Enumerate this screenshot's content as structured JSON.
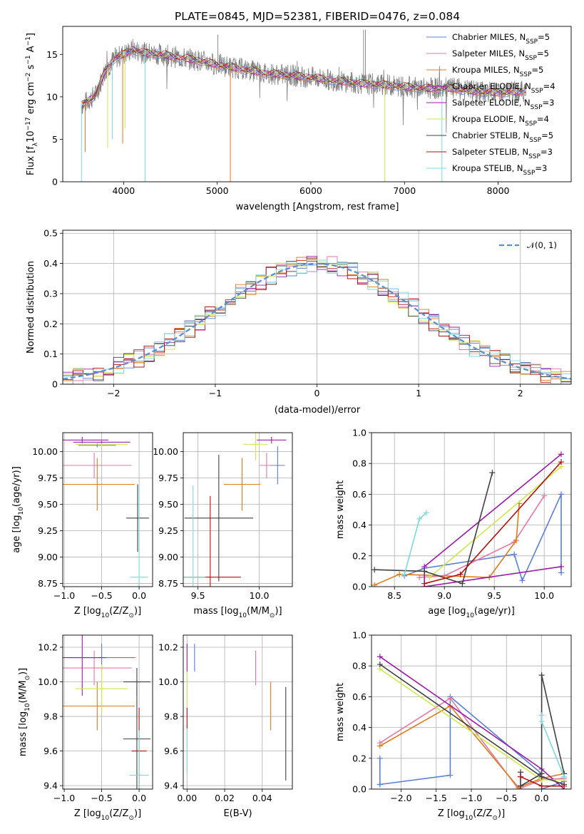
{
  "colors": {
    "Chabrier MILES": "#5b7fd4",
    "Salpeter MILES": "#e377a7",
    "Kroupa MILES": "#e07b1a",
    "Chabrier ELODIE": "#9b1ba8",
    "Salpeter ELODIE": "#9b1ba8",
    "Kroupa ELODIE": "#cfe84a",
    "Chabrier STELIB": "#404040",
    "Salpeter STELIB": "#b31010",
    "Kroupa STELIB": "#7ed8e0",
    "gauss": "#5b8fd4"
  },
  "chart_data": [
    {
      "id": "spectrum",
      "type": "line",
      "title": "PLATE=0845, MJD=52381, FIBERID=0476, z=0.084",
      "xlabel": "wavelength [Angstrom, rest frame]",
      "ylabel_main": "Flux [f",
      "ylabel_sub": "λ",
      "ylabel_rest": "10",
      "ylabel_sup1": "−17",
      "ylabel_mid": " erg cm",
      "ylabel_sup2": "−2",
      "ylabel_mid2": " s",
      "ylabel_sup3": "−1",
      "ylabel_end": " A",
      "ylabel_sup4": "−1",
      "ylabel_close": "]",
      "xlim": [
        3350,
        8780
      ],
      "ylim": [
        0,
        18.3
      ],
      "xticks": [
        4000,
        5000,
        6000,
        7000,
        8000
      ],
      "yticks": [
        0,
        5,
        10,
        15
      ],
      "legend": [
        {
          "name": "Chabrier MILES",
          "nssp": "5"
        },
        {
          "name": "Salpeter MILES",
          "nssp": "5"
        },
        {
          "name": "Kroupa MILES",
          "nssp": "5"
        },
        {
          "name": "Chabrier ELODIE",
          "nssp": "4"
        },
        {
          "name": "Salpeter ELODIE",
          "nssp": "3"
        },
        {
          "name": "Kroupa ELODIE",
          "nssp": "4"
        },
        {
          "name": "Chabrier STELIB",
          "nssp": "5"
        },
        {
          "name": "Salpeter STELIB",
          "nssp": "3"
        },
        {
          "name": "Kroupa STELIB",
          "nssp": "3"
        }
      ],
      "legend_prefix": "N",
      "legend_sub": "SSP",
      "legend_placement": "upper-right",
      "continuum": [
        [
          3550,
          9.0
        ],
        [
          3700,
          10.2
        ],
        [
          3800,
          13.0
        ],
        [
          3900,
          14.5
        ],
        [
          4000,
          15.0
        ],
        [
          4100,
          15.6
        ],
        [
          4200,
          15.2
        ],
        [
          4400,
          15.0
        ],
        [
          4600,
          14.6
        ],
        [
          4800,
          14.3
        ],
        [
          5000,
          13.8
        ],
        [
          5200,
          13.4
        ],
        [
          5500,
          12.8
        ],
        [
          5800,
          12.5
        ],
        [
          6000,
          12.3
        ],
        [
          6200,
          12.0
        ],
        [
          6500,
          11.6
        ],
        [
          6800,
          11.4
        ],
        [
          7000,
          11.2
        ],
        [
          7200,
          11.0
        ],
        [
          7500,
          11.0
        ],
        [
          7800,
          10.6
        ],
        [
          8000,
          10.5
        ],
        [
          8200,
          10.6
        ],
        [
          8300,
          10.7
        ]
      ],
      "dips": [
        [
          3550,
          0
        ],
        [
          3590,
          3.5
        ],
        [
          3830,
          4.0
        ],
        [
          3880,
          5.0
        ],
        [
          3990,
          4.5
        ],
        [
          4015,
          6.3
        ],
        [
          4230,
          0
        ],
        [
          5140,
          0
        ],
        [
          6790,
          0
        ],
        [
          7400,
          0
        ]
      ]
    },
    {
      "id": "residuals",
      "type": "line",
      "xlabel": "(data-model)/error",
      "ylabel": "Normed distribution",
      "xlim": [
        -2.5,
        2.5
      ],
      "ylim": [
        0,
        0.51
      ],
      "xticks": [
        -2,
        -1,
        0,
        1,
        2
      ],
      "yticks": [
        0.0,
        0.1,
        0.2,
        0.3,
        0.4,
        0.5
      ],
      "series": [
        {
          "name": "𝒩(0, 1)",
          "mu": 0,
          "sigma": 1
        }
      ],
      "legend_placement": "upper-right",
      "bin_width": 0.1
    },
    {
      "id": "age_vs_Z",
      "type": "scatter",
      "xlabel": "Z [log",
      "xlabel_sub": "10",
      "xlabel_end": "(Z/Z",
      "xlabel_sun": "⊙",
      "xlabel_close": ")]",
      "ylabel": "age  [log",
      "ylabel_sub": "10",
      "ylabel_end": "(age/yr)]",
      "xlim": [
        -1.02,
        0.18
      ],
      "ylim": [
        8.72,
        10.18
      ],
      "xticks": [
        -1.0,
        -0.5,
        0.0
      ],
      "xticklabels": [
        "−1.0",
        "−0.5",
        "0.0"
      ],
      "yticks": [
        8.75,
        9.0,
        9.25,
        9.5,
        9.75,
        10.0
      ],
      "yticklabels": [
        "8.75",
        "9.00",
        "9.25",
        "9.50",
        "9.75",
        "10.00"
      ],
      "points": [
        {
          "name": "Chabrier MILES",
          "x": -0.56,
          "xerr": 0.25,
          "y": 10.06,
          "yerr": 0.02
        },
        {
          "name": "Salpeter MILES",
          "x": -0.6,
          "xerr": 0.5,
          "y": 9.87,
          "yerr": 0.12
        },
        {
          "name": "Kroupa MILES",
          "x": -0.56,
          "xerr": 0.5,
          "y": 9.69,
          "yerr": 0.25
        },
        {
          "name": "Chabrier ELODIE",
          "x": -0.76,
          "xerr": 0.35,
          "y": 10.11,
          "yerr": 0.03
        },
        {
          "name": "Kroupa ELODIE",
          "x": -0.5,
          "xerr": 0.35,
          "y": 10.07,
          "yerr": 0.02
        },
        {
          "name": "Salpeter ELODIE",
          "x": -0.5,
          "xerr": 0.38,
          "y": 10.09,
          "yerr": 0.01
        },
        {
          "name": "Chabrier STELIB",
          "x": -0.02,
          "xerr": 0.15,
          "y": 9.37,
          "yerr": 0.32
        },
        {
          "name": "Kroupa STELIB",
          "x": 0.0,
          "xerr": 0.12,
          "y": 8.81,
          "yerr": 0.87
        }
      ]
    },
    {
      "id": "age_vs_mass",
      "type": "scatter",
      "xlabel": "mass [log",
      "xlabel_sub": "10",
      "xlabel_end": "(M/M",
      "xlabel_sun": "⊙",
      "xlabel_close": ")]",
      "xlim": [
        9.38,
        10.27
      ],
      "ylim": [
        8.72,
        10.18
      ],
      "xticks": [
        9.5,
        10.0
      ],
      "xticklabels": [
        "9.5",
        "10.0"
      ],
      "yticks": [
        8.75,
        9.0,
        9.25,
        9.5,
        9.75,
        10.0
      ],
      "yticklabels": [
        "8.75",
        "9.00",
        "9.25",
        "9.50",
        "9.75",
        "10.00"
      ],
      "points": [
        {
          "name": "Chabrier MILES",
          "x": 10.15,
          "xerr": 0.06,
          "y": 9.87,
          "yerr": 0.18
        },
        {
          "name": "Salpeter MILES",
          "x": 10.06,
          "xerr": 0.06,
          "y": 9.87,
          "yerr": 0.12
        },
        {
          "name": "Kroupa MILES",
          "x": 9.86,
          "xerr": 0.15,
          "y": 9.69,
          "yerr": 0.25
        },
        {
          "name": "Chabrier ELODIE",
          "x": 10.1,
          "xerr": 0.12,
          "y": 10.11,
          "yerr": 0.03
        },
        {
          "name": "Kroupa ELODIE",
          "x": 9.97,
          "xerr": 0.1,
          "y": 10.07,
          "yerr": 0.15
        },
        {
          "name": "Chabrier STELIB",
          "x": 9.67,
          "xerr": 0.28,
          "y": 9.37,
          "yerr": 0.6
        },
        {
          "name": "Salpeter STELIB",
          "x": 9.6,
          "xerr": 0.25,
          "y": 8.81,
          "yerr": 0.77
        },
        {
          "name": "Kroupa STELIB",
          "x": 9.46,
          "xerr": 0.1,
          "y": 8.81,
          "yerr": 0.87
        }
      ]
    },
    {
      "id": "weight_vs_age",
      "type": "line",
      "xlabel": "age  [log",
      "xlabel_sub": "10",
      "xlabel_end": "(age/yr)]",
      "ylabel": "mass weight",
      "xlim": [
        8.27,
        10.27
      ],
      "ylim": [
        0,
        1.0
      ],
      "xticks": [
        8.5,
        9.0,
        9.5,
        10.0
      ],
      "xticklabels": [
        "8.5",
        "9.0",
        "9.5",
        "10.0"
      ],
      "yticks": [
        0.0,
        0.2,
        0.4,
        0.6,
        0.8,
        1.0
      ],
      "yticklabels": [
        "0.0",
        "0.2",
        "0.4",
        "0.6",
        "0.8",
        "1.0"
      ],
      "series": [
        {
          "name": "Chabrier MILES",
          "x": [
            8.6,
            8.8,
            9.7,
            9.78,
            10.17,
            10.17
          ],
          "y": [
            0.07,
            0.12,
            0.21,
            0.04,
            0.6,
            0.09
          ]
        },
        {
          "name": "Salpeter MILES",
          "x": [
            8.75,
            9.0,
            9.7,
            10.0
          ],
          "y": [
            0.06,
            0.07,
            0.29,
            0.59
          ]
        },
        {
          "name": "Kroupa MILES",
          "x": [
            8.3,
            8.55,
            9.45,
            9.72,
            9.75
          ],
          "y": [
            0.01,
            0.08,
            0.06,
            0.3,
            0.54
          ]
        },
        {
          "name": "Chabrier ELODIE",
          "x": [
            8.8,
            8.8,
            10.17
          ],
          "y": [
            0.0,
            0.13,
            0.86
          ]
        },
        {
          "name": "Salpeter ELODIE",
          "x": [
            8.8,
            10.17
          ],
          "y": [
            0.0,
            0.13
          ]
        },
        {
          "name": "Kroupa ELODIE",
          "x": [
            8.85,
            10.17
          ],
          "y": [
            0.06,
            0.78
          ]
        },
        {
          "name": "Chabrier STELIB",
          "x": [
            8.3,
            8.8,
            9.18,
            9.48
          ],
          "y": [
            0.11,
            0.1,
            0.02,
            0.74
          ]
        },
        {
          "name": "Salpeter STELIB",
          "x": [
            8.8,
            9.16,
            10.17
          ],
          "y": [
            0.02,
            0.08,
            0.81
          ]
        },
        {
          "name": "Kroupa STELIB",
          "x": [
            8.6,
            8.75,
            8.82
          ],
          "y": [
            0.08,
            0.44,
            0.48
          ]
        }
      ]
    },
    {
      "id": "mass_vs_Z",
      "type": "scatter",
      "xlabel": "Z [log",
      "xlabel_sub": "10",
      "xlabel_end": "(Z/Z",
      "xlabel_sun": "⊙",
      "xlabel_close": ")]",
      "ylabel": "mass [log",
      "ylabel_sub": "10",
      "ylabel_end": "(M/M",
      "ylabel_sun": "⊙",
      "ylabel_close": ")]",
      "xlim": [
        -1.02,
        0.18
      ],
      "ylim": [
        9.38,
        10.27
      ],
      "xticks": [
        -1.0,
        -0.5,
        0.0
      ],
      "xticklabels": [
        "−1.0",
        "−0.5",
        "0.0"
      ],
      "yticks": [
        9.4,
        9.6,
        9.8,
        10.0,
        10.2
      ],
      "yticklabels": [
        "9.4",
        "9.6",
        "9.8",
        "10.0",
        "10.2"
      ],
      "points": [
        {
          "name": "Chabrier MILES",
          "x": -0.5,
          "xerr": 0.45,
          "y": 10.14,
          "yerr": 0.08
        },
        {
          "name": "Salpeter MILES",
          "x": -0.6,
          "xerr": 0.5,
          "y": 10.08,
          "yerr": 0.1
        },
        {
          "name": "Kroupa MILES",
          "x": -0.56,
          "xerr": 0.5,
          "y": 9.86,
          "yerr": 0.14
        },
        {
          "name": "Chabrier ELODIE",
          "x": -0.76,
          "xerr": 0.32,
          "y": 10.14,
          "yerr": 0.22
        },
        {
          "name": "Kroupa ELODIE",
          "x": -0.5,
          "xerr": 0.35,
          "y": 9.96,
          "yerr": 0.14
        },
        {
          "name": "Chabrier STELIB",
          "x": -0.03,
          "xerr": 0.18,
          "y": 10.0,
          "yerr": 0.08
        },
        {
          "name": "Chabrier STELIB",
          "x": -0.03,
          "xerr": 0.18,
          "y": 9.67,
          "yerr": 0.3
        },
        {
          "name": "Salpeter STELIB",
          "x": 0.0,
          "xerr": 0.1,
          "y": 9.6,
          "yerr": 0.25
        },
        {
          "name": "Kroupa STELIB",
          "x": 0.0,
          "xerr": 0.13,
          "y": 9.46,
          "yerr": 0.26
        }
      ]
    },
    {
      "id": "mass_vs_ebv",
      "type": "scatter",
      "xlabel": "E(B-V)",
      "xlim": [
        -0.002,
        0.056
      ],
      "ylim": [
        9.38,
        10.27
      ],
      "xticks": [
        0.0,
        0.02,
        0.04
      ],
      "xticklabels": [
        "0.00",
        "0.02",
        "0.04"
      ],
      "yticks": [
        9.4,
        9.6,
        9.8,
        10.0,
        10.2
      ],
      "yticklabels": [
        "9.4",
        "9.6",
        "9.8",
        "10.0",
        "10.2"
      ],
      "points": [
        {
          "name": "Chabrier MILES",
          "x": 0.004,
          "xerr": 0,
          "y": 10.14,
          "yerr": 0.08
        },
        {
          "name": "Salpeter MILES",
          "x": 0.0365,
          "xerr": 0,
          "y": 10.08,
          "yerr": 0.1
        },
        {
          "name": "Kroupa MILES",
          "x": 0.0445,
          "xerr": 0,
          "y": 9.86,
          "yerr": 0.14
        },
        {
          "name": "Chabrier ELODIE",
          "x": 0.0,
          "xerr": 0,
          "y": 10.14,
          "yerr": 0.08
        },
        {
          "name": "Kroupa ELODIE",
          "x": 0.0,
          "xerr": 0,
          "y": 9.96,
          "yerr": 0.1
        },
        {
          "name": "Chabrier STELIB",
          "x": 0.0525,
          "xerr": 0,
          "y": 9.7,
          "yerr": 0.27
        },
        {
          "name": "Salpeter STELIB",
          "x": 0.0,
          "xerr": 0,
          "y": 9.79,
          "yerr": 0.06
        },
        {
          "name": "Kroupa STELIB",
          "x": 0.0,
          "xerr": 0,
          "y": 9.6,
          "yerr": 0.13
        }
      ]
    },
    {
      "id": "weight_vs_Z",
      "type": "line",
      "xlabel": "Z [log",
      "xlabel_sub": "10",
      "xlabel_end": "(Z/Z",
      "xlabel_sun": "⊙",
      "xlabel_close": ")]",
      "ylabel": "mass weight",
      "xlim": [
        -2.42,
        0.42
      ],
      "ylim": [
        0,
        1.0
      ],
      "xticks": [
        -2.0,
        -1.5,
        -1.0,
        -0.5,
        0.0
      ],
      "xticklabels": [
        "−2.0",
        "−1.5",
        "−1.0",
        "−0.5",
        "0.0"
      ],
      "yticks": [
        0.0,
        0.2,
        0.4,
        0.6,
        0.8,
        1.0
      ],
      "yticklabels": [
        "0.0",
        "0.2",
        "0.4",
        "0.6",
        "0.8",
        "1.0"
      ],
      "series": [
        {
          "name": "Chabrier MILES",
          "x": [
            -2.3,
            -2.3,
            -2.3,
            -1.3,
            -1.3,
            0.0,
            0.0,
            0.32
          ],
          "y": [
            0.2,
            0.03,
            0.03,
            0.09,
            0.6,
            0.1,
            0.0,
            0.05
          ]
        },
        {
          "name": "Salpeter MILES",
          "x": [
            -2.3,
            -1.3,
            -0.33,
            0.0,
            0.32
          ],
          "y": [
            0.3,
            0.59,
            0.0,
            0.06,
            0.07
          ]
        },
        {
          "name": "Kroupa MILES",
          "x": [
            -2.3,
            -1.3,
            -0.33,
            0.0,
            0.32
          ],
          "y": [
            0.28,
            0.54,
            0.01,
            0.07,
            0.1
          ]
        },
        {
          "name": "Chabrier ELODIE",
          "x": [
            -2.3,
            0.0,
            0.32
          ],
          "y": [
            0.86,
            0.13,
            0.0
          ]
        },
        {
          "name": "Kroupa ELODIE",
          "x": [
            -2.3,
            0.0,
            0.32
          ],
          "y": [
            0.78,
            0.06,
            0.06
          ]
        },
        {
          "name": "Chabrier STELIB",
          "x": [
            -2.3,
            0.0,
            0.32
          ],
          "y": [
            0.81,
            0.08,
            0.03
          ]
        },
        {
          "name": "Chabrier STELIB",
          "x": [
            -0.3,
            -0.3,
            0.0,
            0.0,
            0.32
          ],
          "y": [
            0.11,
            0.02,
            0.1,
            0.74,
            0.1
          ]
        },
        {
          "name": "Salpeter STELIB",
          "x": [
            -0.3,
            0.0,
            0.32
          ],
          "y": [
            0.08,
            0.02,
            0.02
          ]
        },
        {
          "name": "Kroupa STELIB",
          "x": [
            0.0,
            0.0,
            0.32
          ],
          "y": [
            0.48,
            0.44,
            0.08
          ]
        }
      ]
    }
  ]
}
